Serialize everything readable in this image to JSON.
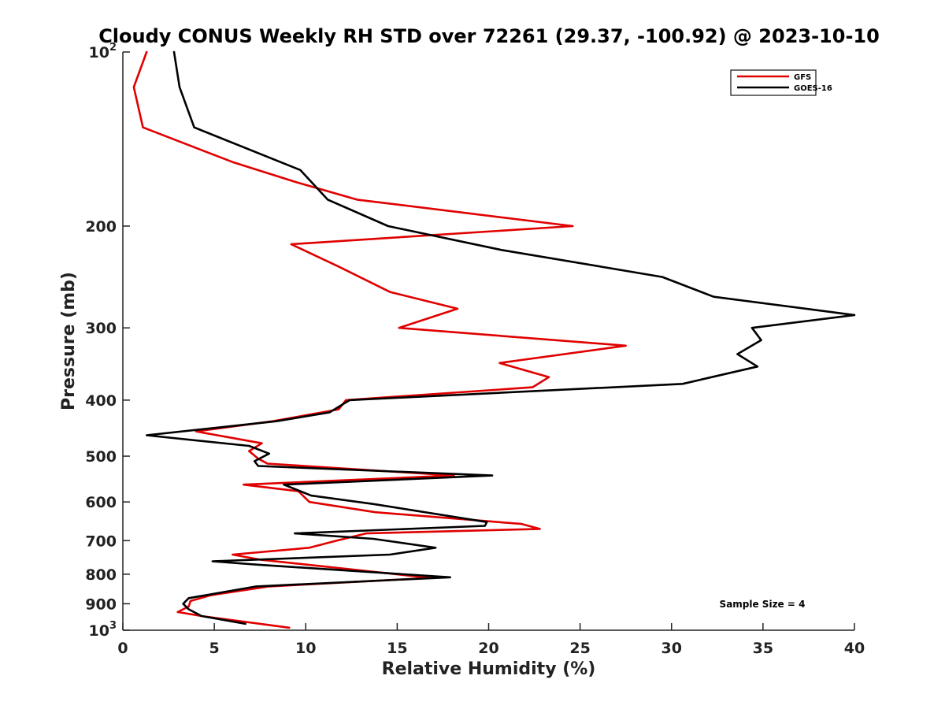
{
  "chart_data": {
    "type": "line",
    "title": "Cloudy CONUS Weekly RH STD over 72261 (29.37, -100.92) @ 2023-10-10",
    "xlabel": "Relative Humidity (%)",
    "ylabel": "Pressure (mb)",
    "xlim": [
      0,
      40
    ],
    "ylim": [
      100,
      1000
    ],
    "y_scale": "log",
    "y_reversed": true,
    "grid": false,
    "legend_position": "top-right",
    "x_ticks": [
      0,
      5,
      10,
      15,
      20,
      25,
      30,
      35,
      40
    ],
    "x_tick_labels": [
      "0",
      "5",
      "10",
      "15",
      "20",
      "25",
      "30",
      "35",
      "40"
    ],
    "y_ticks": [
      200,
      300,
      400,
      500,
      600,
      700,
      800,
      900
    ],
    "y_tick_labels": [
      "200",
      "300",
      "400",
      "500",
      "600",
      "700",
      "800",
      "900"
    ],
    "y_end_labels": {
      "top": {
        "value": 100,
        "base": "10",
        "exp": "2"
      },
      "bottom": {
        "value": 1000,
        "base": "10",
        "exp": "3"
      }
    },
    "series": [
      {
        "name": "GFS",
        "color": "#e00000",
        "points": [
          [
            1.3,
            100
          ],
          [
            0.6,
            115
          ],
          [
            1.1,
            135
          ],
          [
            6.0,
            155
          ],
          [
            9.5,
            168
          ],
          [
            12.8,
            180
          ],
          [
            24.6,
            200
          ],
          [
            9.2,
            215
          ],
          [
            11.8,
            235
          ],
          [
            14.6,
            260
          ],
          [
            18.3,
            278
          ],
          [
            15.1,
            300
          ],
          [
            27.5,
            322
          ],
          [
            20.6,
            345
          ],
          [
            23.3,
            365
          ],
          [
            22.4,
            380
          ],
          [
            12.2,
            400
          ],
          [
            11.8,
            415
          ],
          [
            8.2,
            435
          ],
          [
            4.0,
            453
          ],
          [
            7.6,
            475
          ],
          [
            6.9,
            490
          ],
          [
            7.4,
            505
          ],
          [
            7.9,
            515
          ],
          [
            18.1,
            540
          ],
          [
            6.6,
            560
          ],
          [
            9.6,
            575
          ],
          [
            10.2,
            600
          ],
          [
            13.8,
            625
          ],
          [
            21.8,
            655
          ],
          [
            22.8,
            668
          ],
          [
            13.3,
            680
          ],
          [
            11.7,
            700
          ],
          [
            10.2,
            720
          ],
          [
            6.0,
            740
          ],
          [
            7.5,
            755
          ],
          [
            12.5,
            785
          ],
          [
            16.8,
            812
          ],
          [
            8.0,
            840
          ],
          [
            4.8,
            870
          ],
          [
            3.7,
            890
          ],
          [
            3.6,
            910
          ],
          [
            3.0,
            930
          ],
          [
            4.3,
            945
          ],
          [
            9.1,
            990
          ]
        ]
      },
      {
        "name": "GOES-16",
        "color": "#000000",
        "points": [
          [
            2.8,
            100
          ],
          [
            3.1,
            115
          ],
          [
            3.9,
            135
          ],
          [
            9.7,
            160
          ],
          [
            11.2,
            180
          ],
          [
            14.5,
            200
          ],
          [
            20.7,
            220
          ],
          [
            29.5,
            245
          ],
          [
            32.3,
            265
          ],
          [
            40.0,
            285
          ],
          [
            34.4,
            300
          ],
          [
            34.9,
            315
          ],
          [
            33.6,
            333
          ],
          [
            34.7,
            350
          ],
          [
            30.6,
            375
          ],
          [
            12.4,
            400
          ],
          [
            11.3,
            420
          ],
          [
            8.4,
            435
          ],
          [
            1.3,
            460
          ],
          [
            6.9,
            480
          ],
          [
            8.0,
            495
          ],
          [
            7.2,
            510
          ],
          [
            7.4,
            520
          ],
          [
            20.2,
            540
          ],
          [
            8.8,
            560
          ],
          [
            10.3,
            585
          ],
          [
            13.7,
            605
          ],
          [
            19.9,
            650
          ],
          [
            19.8,
            660
          ],
          [
            9.4,
            680
          ],
          [
            13.7,
            695
          ],
          [
            17.1,
            720
          ],
          [
            14.6,
            740
          ],
          [
            4.9,
            760
          ],
          [
            7.3,
            770
          ],
          [
            17.9,
            810
          ],
          [
            7.3,
            840
          ],
          [
            3.6,
            880
          ],
          [
            3.3,
            900
          ],
          [
            3.6,
            920
          ],
          [
            4.3,
            945
          ],
          [
            6.7,
            975
          ]
        ]
      }
    ],
    "annotation": "Sample Size = 4"
  }
}
